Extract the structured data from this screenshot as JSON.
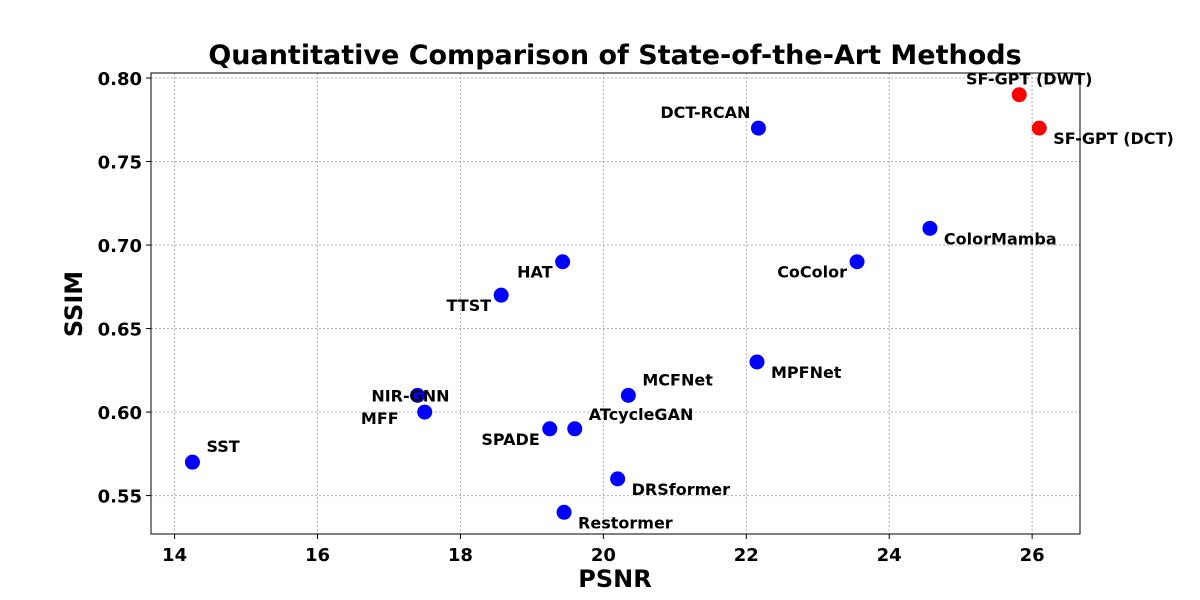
{
  "chart_data": {
    "type": "scatter",
    "title": "Quantitative Comparison of State-of-the-Art Methods",
    "xlabel": "PSNR",
    "ylabel": "SSIM",
    "xlim": [
      13.67,
      26.67
    ],
    "ylim": [
      0.527,
      0.803
    ],
    "xticks": [
      14,
      16,
      18,
      20,
      22,
      24,
      26
    ],
    "yticks": [
      0.55,
      0.6,
      0.65,
      0.7,
      0.75,
      0.8
    ],
    "grid": true,
    "colors": {
      "baseline": "#0000ff",
      "highlight": "#ff0000"
    },
    "points": [
      {
        "label": "SST",
        "x": 14.25,
        "y": 0.57,
        "highlight": false,
        "label_pos": "above-right"
      },
      {
        "label": "NIR-GNN",
        "x": 17.4,
        "y": 0.61,
        "highlight": false,
        "label_pos": "left"
      },
      {
        "label": "MFF",
        "x": 17.5,
        "y": 0.6,
        "highlight": false,
        "label_pos": "upper-left"
      },
      {
        "label": "TTST",
        "x": 18.57,
        "y": 0.67,
        "highlight": false,
        "label_pos": "below-left"
      },
      {
        "label": "HAT",
        "x": 19.43,
        "y": 0.69,
        "highlight": false,
        "label_pos": "below-left"
      },
      {
        "label": "SPADE",
        "x": 19.25,
        "y": 0.59,
        "highlight": false,
        "label_pos": "below-left"
      },
      {
        "label": "ATcycleGAN",
        "x": 19.6,
        "y": 0.59,
        "highlight": false,
        "label_pos": "upper-right"
      },
      {
        "label": "Restormer",
        "x": 19.45,
        "y": 0.54,
        "highlight": false,
        "label_pos": "below-right"
      },
      {
        "label": "DRSformer",
        "x": 20.2,
        "y": 0.56,
        "highlight": false,
        "label_pos": "below-right"
      },
      {
        "label": "MCFNet",
        "x": 20.35,
        "y": 0.61,
        "highlight": false,
        "label_pos": "above-right"
      },
      {
        "label": "MPFNet",
        "x": 22.15,
        "y": 0.63,
        "highlight": false,
        "label_pos": "below-right"
      },
      {
        "label": "DCT-RCAN",
        "x": 22.17,
        "y": 0.77,
        "highlight": false,
        "label_pos": "above-left"
      },
      {
        "label": "CoColor",
        "x": 23.55,
        "y": 0.69,
        "highlight": false,
        "label_pos": "below-left"
      },
      {
        "label": "ColorMamba",
        "x": 24.57,
        "y": 0.71,
        "highlight": false,
        "label_pos": "below-right"
      },
      {
        "label": "SF-GPT (DWT)",
        "x": 25.82,
        "y": 0.79,
        "highlight": true,
        "label_pos": "above"
      },
      {
        "label": "SF-GPT (DCT)",
        "x": 26.1,
        "y": 0.77,
        "highlight": true,
        "label_pos": "below-right"
      }
    ]
  }
}
